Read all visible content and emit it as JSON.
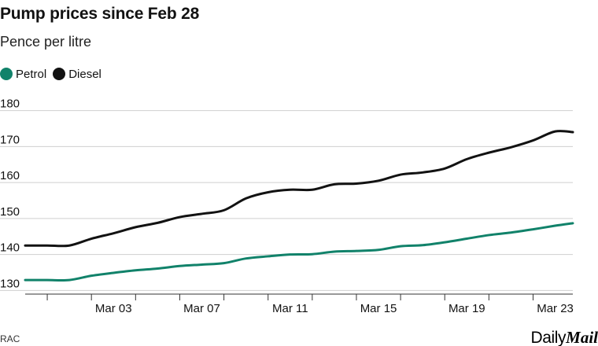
{
  "chart_data": {
    "type": "line",
    "title": "Pump prices since Feb 28",
    "subtitle": "Pence per litre",
    "source": "RAC",
    "legend_position": "top-left",
    "y_ticks": [
      "180",
      "170",
      "160",
      "150",
      "140",
      "130"
    ],
    "ylim": [
      129,
      181
    ],
    "x_tick_labels": [
      "Mar 03",
      "Mar 07",
      "Mar 11",
      "Mar 15",
      "Mar 19",
      "Mar 23"
    ],
    "x_tick_label_day_index": [
      4,
      8,
      12,
      16,
      20,
      24
    ],
    "x_tick_mark_day_index": [
      1,
      3,
      5,
      7,
      9,
      11,
      13,
      15,
      17,
      19,
      21,
      23
    ],
    "day_range": [
      0,
      24.8
    ],
    "x": [
      0,
      1,
      2,
      3,
      4,
      5,
      6,
      7,
      8,
      9,
      10,
      11,
      12,
      13,
      14,
      15,
      16,
      17,
      18,
      19,
      20,
      21,
      22,
      23,
      24,
      24.8
    ],
    "series": [
      {
        "name": "Petrol",
        "color": "#11826a",
        "values": [
          132.9,
          132.9,
          132.9,
          134.1,
          134.9,
          135.6,
          136.1,
          136.8,
          137.2,
          137.6,
          138.9,
          139.5,
          140.0,
          140.1,
          140.8,
          141.0,
          141.3,
          142.3,
          142.6,
          143.4,
          144.4,
          145.4,
          146.1,
          147.0,
          148.0,
          148.7
        ]
      },
      {
        "name": "Diesel",
        "color": "#121212",
        "values": [
          142.5,
          142.5,
          142.5,
          144.4,
          145.9,
          147.6,
          148.8,
          150.4,
          151.3,
          152.3,
          155.6,
          157.3,
          158.0,
          158.0,
          159.5,
          159.7,
          160.5,
          162.2,
          162.8,
          163.9,
          166.5,
          168.3,
          169.8,
          171.7,
          174.2,
          174.0
        ]
      }
    ]
  },
  "brand": {
    "daily": "Daily",
    "mail": "Mail"
  },
  "colors": {
    "grid": "#cfcfcf",
    "axis": "#333333",
    "text": "#121212"
  }
}
